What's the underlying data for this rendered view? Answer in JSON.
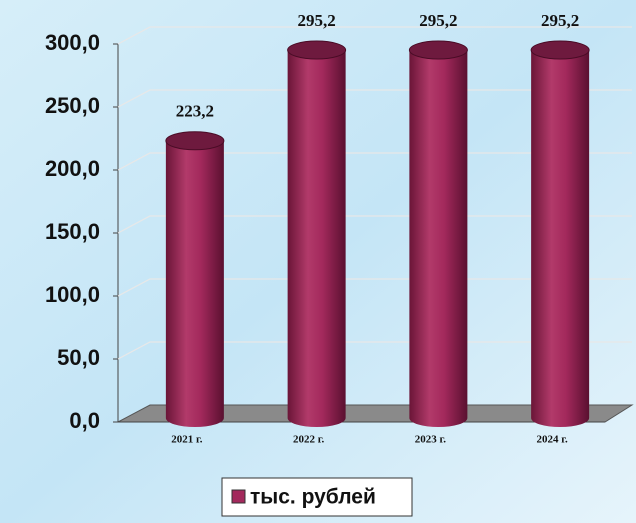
{
  "chart_data": {
    "type": "bar",
    "categories": [
      "2021 г.",
      "2022 г.",
      "2023 г.",
      "2024 г."
    ],
    "series": [
      {
        "name": "тыс. рублей",
        "color": "#a3295c",
        "values": [
          223.2,
          295.2,
          295.2,
          295.2
        ],
        "value_labels": [
          "223,2",
          "295,2",
          "295,2",
          "295,2"
        ]
      }
    ],
    "ylim": [
      0,
      300
    ],
    "yticks": [
      {
        "value": 0,
        "label": "0,0"
      },
      {
        "value": 50,
        "label": "50,0"
      },
      {
        "value": 100,
        "label": "100,0"
      },
      {
        "value": 150,
        "label": "150,0"
      },
      {
        "value": 200,
        "label": "200,0"
      },
      {
        "value": 250,
        "label": "250,0"
      },
      {
        "value": 300,
        "label": "300,0"
      }
    ],
    "grid": true,
    "legend": "bottom"
  }
}
